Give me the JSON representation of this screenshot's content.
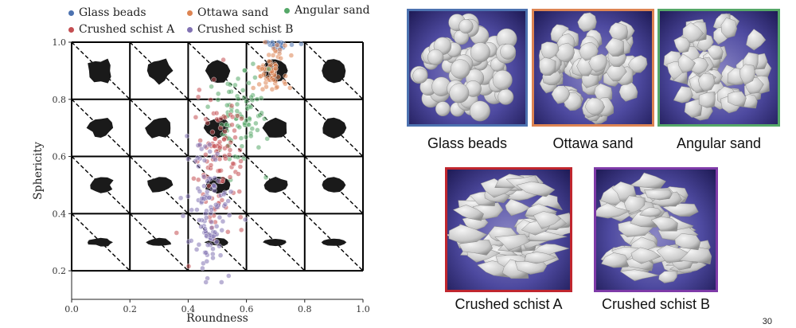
{
  "chart_data": {
    "type": "scatter",
    "xlabel": "Roundness",
    "ylabel": "Sphericity",
    "xlim": [
      0.0,
      1.0
    ],
    "ylim": [
      0.1,
      1.0
    ],
    "xticks": [
      "0.0",
      "0.2",
      "0.4",
      "0.6",
      "0.8",
      "1.0"
    ],
    "yticks": [
      "0.2",
      "0.4",
      "0.6",
      "0.8",
      "1.0"
    ],
    "grid_cells": {
      "roundness": [
        0.1,
        0.3,
        0.5,
        0.7,
        0.9
      ],
      "sphericity": [
        0.3,
        0.5,
        0.7,
        0.9
      ]
    },
    "series": [
      {
        "name": "Glass beads",
        "color": "#4c72b0",
        "center": [
          0.71,
          0.99
        ],
        "spread": [
          0.02,
          0.01
        ],
        "count": 30
      },
      {
        "name": "Ottawa sand",
        "color": "#dd8452",
        "center": [
          0.68,
          0.9
        ],
        "spread": [
          0.03,
          0.04
        ],
        "count": 70
      },
      {
        "name": "Angular sand",
        "color": "#55a868",
        "center": [
          0.58,
          0.74
        ],
        "spread": [
          0.05,
          0.09
        ],
        "count": 90
      },
      {
        "name": "Crushed schist A",
        "color": "#c44e52",
        "center": [
          0.51,
          0.6
        ],
        "spread": [
          0.04,
          0.11
        ],
        "count": 110
      },
      {
        "name": "Crushed schist B",
        "color": "#8172b3",
        "center": [
          0.47,
          0.4
        ],
        "spread": [
          0.04,
          0.12
        ],
        "count": 120
      }
    ]
  },
  "legend": [
    {
      "label": "Glass beads",
      "color": "#4c72b0"
    },
    {
      "label": "Ottawa sand",
      "color": "#dd8452"
    },
    {
      "label": "Angular sand",
      "color": "#55a868"
    },
    {
      "label": "Crushed schist A",
      "color": "#c44e52"
    },
    {
      "label": "Crushed schist B",
      "color": "#8172b3"
    }
  ],
  "panels": [
    {
      "caption": "Glass beads",
      "border": "#4c72b0",
      "shape": "spheres"
    },
    {
      "caption": "Ottawa sand",
      "border": "#dd8452",
      "shape": "rounded"
    },
    {
      "caption": "Angular sand",
      "border": "#55a868",
      "shape": "angular"
    },
    {
      "caption": "Crushed schist A",
      "border": "#c0262e",
      "shape": "flaky"
    },
    {
      "caption": "Crushed schist B",
      "border": "#7e3aa8",
      "shape": "flaky"
    }
  ],
  "page_number": "30"
}
